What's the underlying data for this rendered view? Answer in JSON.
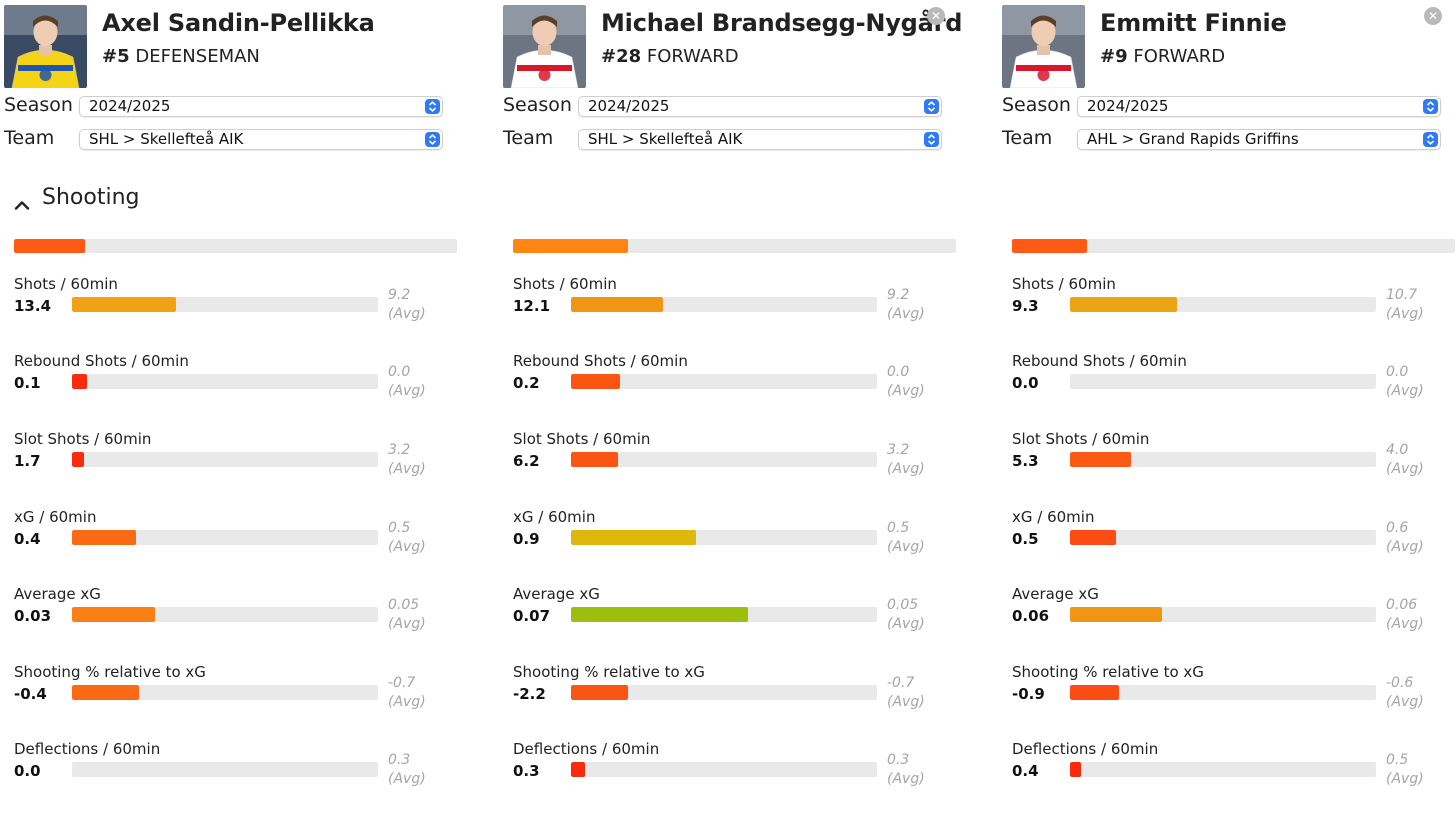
{
  "section": {
    "title": "Shooting",
    "expanded": true,
    "chevron_icon": "chevron-up-icon"
  },
  "form_labels": {
    "season": "Season",
    "team": "Team"
  },
  "avg_label": "(Avg)",
  "players": [
    {
      "name": "Axel Sandin-Pellikka",
      "number": "#5",
      "position": "DEFENSEMAN",
      "photo_icon": "player-photo",
      "jersey_color": "#f5d416",
      "accent_color": "#1f56a8",
      "removable": false,
      "season": "2024/2025",
      "team": "SHL > Skellefteå AIK",
      "summary_fraction": 0.16,
      "summary_color": "#ff5a14",
      "stats": [
        {
          "label": "Shots / 60min",
          "value": "13.4",
          "avg": "9.2",
          "fraction": 0.34,
          "color": "#f0a214"
        },
        {
          "label": "Rebound Shots / 60min",
          "value": "0.1",
          "avg": "0.0",
          "fraction": 0.05,
          "color": "#f82c0c"
        },
        {
          "label": "Slot Shots / 60min",
          "value": "1.7",
          "avg": "3.2",
          "fraction": 0.04,
          "color": "#f82c0c"
        },
        {
          "label": "xG / 60min",
          "value": "0.4",
          "avg": "0.5",
          "fraction": 0.21,
          "color": "#fa6a14"
        },
        {
          "label": "Average xG",
          "value": "0.03",
          "avg": "0.05",
          "fraction": 0.27,
          "color": "#fa7f14"
        },
        {
          "label": "Shooting % relative to xG",
          "value": "-0.4",
          "avg": "-0.7",
          "fraction": 0.22,
          "color": "#fa6a14"
        },
        {
          "label": "Deflections / 60min",
          "value": "0.0",
          "avg": "0.3",
          "fraction": 0.0,
          "color": "#f82c0c"
        }
      ]
    },
    {
      "name": "Michael Brandsegg-Nygård",
      "number": "#28",
      "position": "FORWARD",
      "photo_icon": "player-photo",
      "jersey_color": "#ffffff",
      "accent_color": "#d8182a",
      "removable": true,
      "season": "2024/2025",
      "team": "SHL > Skellefteå AIK",
      "summary_fraction": 0.26,
      "summary_color": "#ff8514",
      "stats": [
        {
          "label": "Shots / 60min",
          "value": "12.1",
          "avg": "9.2",
          "fraction": 0.3,
          "color": "#f09514"
        },
        {
          "label": "Rebound Shots / 60min",
          "value": "0.2",
          "avg": "0.0",
          "fraction": 0.16,
          "color": "#fb5514"
        },
        {
          "label": "Slot Shots / 60min",
          "value": "6.2",
          "avg": "3.2",
          "fraction": 0.155,
          "color": "#fb5514"
        },
        {
          "label": "xG / 60min",
          "value": "0.9",
          "avg": "0.5",
          "fraction": 0.41,
          "color": "#dcb90c"
        },
        {
          "label": "Average xG",
          "value": "0.07",
          "avg": "0.05",
          "fraction": 0.58,
          "color": "#9cbe0c"
        },
        {
          "label": "Shooting % relative to xG",
          "value": "-2.2",
          "avg": "-0.7",
          "fraction": 0.185,
          "color": "#fb5514"
        },
        {
          "label": "Deflections / 60min",
          "value": "0.3",
          "avg": "0.3",
          "fraction": 0.045,
          "color": "#f82c0c"
        }
      ]
    },
    {
      "name": "Emmitt Finnie",
      "number": "#9",
      "position": "FORWARD",
      "photo_icon": "player-photo",
      "jersey_color": "#ffffff",
      "accent_color": "#d8182a",
      "removable": true,
      "season": "2024/2025",
      "team": "AHL > Grand Rapids Griffins",
      "summary_fraction": 0.17,
      "summary_color": "#ff5a14",
      "stats": [
        {
          "label": "Shots / 60min",
          "value": "9.3",
          "avg": "10.7",
          "fraction": 0.35,
          "color": "#eca414"
        },
        {
          "label": "Rebound Shots / 60min",
          "value": "0.0",
          "avg": "0.0",
          "fraction": 0.0,
          "color": "#f82c0c"
        },
        {
          "label": "Slot Shots / 60min",
          "value": "5.3",
          "avg": "4.0",
          "fraction": 0.2,
          "color": "#fb5a14"
        },
        {
          "label": "xG / 60min",
          "value": "0.5",
          "avg": "0.6",
          "fraction": 0.15,
          "color": "#fb4c14"
        },
        {
          "label": "Average xG",
          "value": "0.06",
          "avg": "0.06",
          "fraction": 0.3,
          "color": "#f09514"
        },
        {
          "label": "Shooting % relative to xG",
          "value": "-0.9",
          "avg": "-0.6",
          "fraction": 0.16,
          "color": "#fb4c14"
        },
        {
          "label": "Deflections / 60min",
          "value": "0.4",
          "avg": "0.5",
          "fraction": 0.035,
          "color": "#f82c0c"
        }
      ]
    }
  ]
}
